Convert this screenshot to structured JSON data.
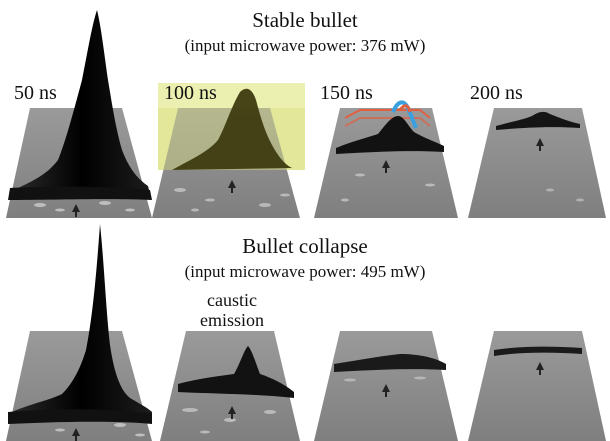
{
  "top": {
    "title": "Stable bullet",
    "subtitle": "(input microwave power: 376 mW)",
    "times": [
      "50 ns",
      "100 ns",
      "150 ns",
      "200 ns"
    ]
  },
  "bottom": {
    "title": "Bullet collapse",
    "subtitle": "(input microwave power: 495 mW)",
    "annotation": [
      "caustic",
      "emission"
    ]
  },
  "colors": {
    "plane": "#8f8f8f",
    "plane_edge": "#b4b4b4",
    "surface": "#0a0a0a",
    "highlight_yellow": "#e7eda2",
    "highlight_olive": "#3e3b10",
    "overlay_red": "#e06040",
    "overlay_blue": "#3aa0e0"
  },
  "icons": [
    "arrow-up-icon"
  ]
}
